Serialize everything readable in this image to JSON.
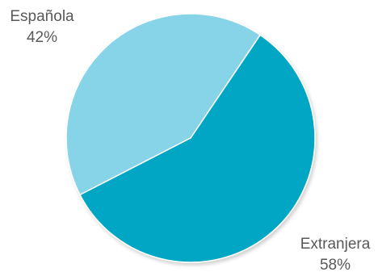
{
  "chart_data": {
    "type": "pie",
    "title": "",
    "categories": [
      "Española",
      "Extranjera"
    ],
    "values": [
      42,
      58
    ],
    "labels": [
      {
        "name": "Española",
        "percent": "42%"
      },
      {
        "name": "Extranjera",
        "percent": "58%"
      }
    ],
    "colors": [
      "#87D3E8",
      "#05A6C4"
    ],
    "start_angle_deg": 56,
    "clockwise": false,
    "legend": "none"
  }
}
